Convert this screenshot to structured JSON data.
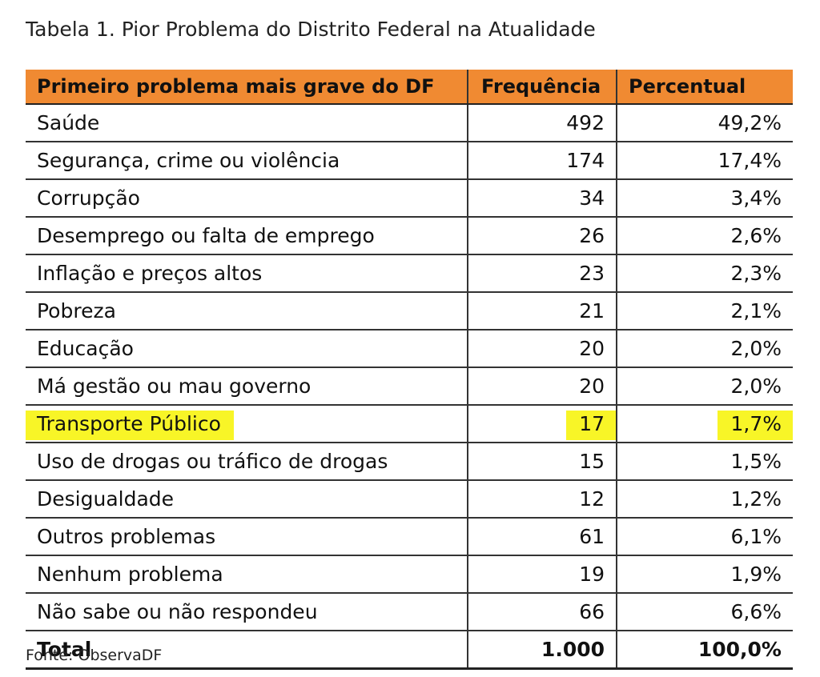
{
  "caption": "Tabela 1. Pior Problema do Distrito Federal na Atualidade",
  "colors": {
    "header_bg": "#f08a32",
    "highlight": "#f8f527"
  },
  "table": {
    "headers": [
      "Primeiro problema mais grave do DF",
      "Frequência",
      "Percentual"
    ],
    "rows": [
      {
        "label": "Saúde",
        "freq": "492",
        "pct": "49,2%"
      },
      {
        "label": "Segurança, crime ou violência",
        "freq": "174",
        "pct": "17,4%"
      },
      {
        "label": "Corrupção",
        "freq": "34",
        "pct": "3,4%"
      },
      {
        "label": "Desemprego ou falta de emprego",
        "freq": "26",
        "pct": "2,6%"
      },
      {
        "label": "Inflação e preços altos",
        "freq": "23",
        "pct": "2,3%"
      },
      {
        "label": "Pobreza",
        "freq": "21",
        "pct": "2,1%"
      },
      {
        "label": "Educação",
        "freq": "20",
        "pct": "2,0%"
      },
      {
        "label": "Má gestão ou mau governo",
        "freq": "20",
        "pct": "2,0%"
      },
      {
        "label": "Transporte Público",
        "freq": "17",
        "pct": "1,7%",
        "highlighted": true
      },
      {
        "label": "Uso de drogas ou tráfico de drogas",
        "freq": "15",
        "pct": "1,5%"
      },
      {
        "label": "Desigualdade",
        "freq": "12",
        "pct": "1,2%"
      },
      {
        "label": "Outros problemas",
        "freq": "61",
        "pct": "6,1%"
      },
      {
        "label": "Nenhum problema",
        "freq": "19",
        "pct": "1,9%"
      },
      {
        "label": "Não sabe ou não respondeu",
        "freq": "66",
        "pct": "6,6%"
      }
    ],
    "total": {
      "label": "Total",
      "freq": "1.000",
      "pct": "100,0%"
    }
  },
  "source": "Fonte: ObservaDF"
}
